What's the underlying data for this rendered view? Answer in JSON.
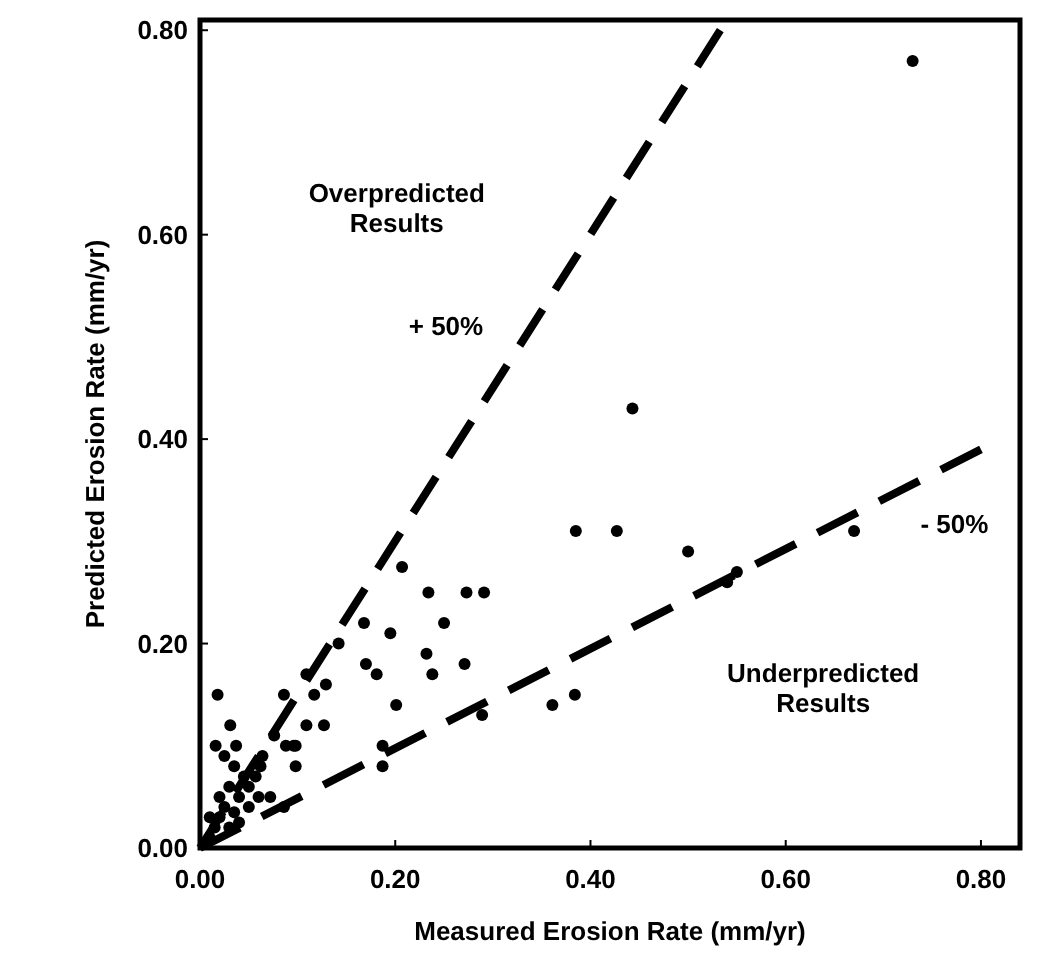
{
  "chart_data": {
    "type": "scatter",
    "xlabel": "Measured Erosion Rate (mm/yr)",
    "ylabel": "Predicted Erosion Rate (mm/yr)",
    "xlim": [
      0,
      0.84
    ],
    "ylim": [
      0,
      0.81
    ],
    "xticks": [
      {
        "value": 0,
        "label": "0.00"
      },
      {
        "value": 0.2,
        "label": "0.20"
      },
      {
        "value": 0.4,
        "label": "0.40"
      },
      {
        "value": 0.6,
        "label": "0.60"
      },
      {
        "value": 0.8,
        "label": "0.80"
      }
    ],
    "yticks": [
      {
        "value": 0,
        "label": "0.00"
      },
      {
        "value": 0.2,
        "label": "0.20"
      },
      {
        "value": 0.4,
        "label": "0.40"
      },
      {
        "value": 0.6,
        "label": "0.60"
      },
      {
        "value": 0.8,
        "label": "0.80"
      }
    ],
    "grid": false,
    "marker": "circle",
    "series": [
      {
        "color": "#000000",
        "x": [
          0.73,
          0.67,
          0.5,
          0.55,
          0.54,
          0.443,
          0.385,
          0.427,
          0.207,
          0.234,
          0.273,
          0.291,
          0.25,
          0.195,
          0.168,
          0.17,
          0.181,
          0.232,
          0.238,
          0.271,
          0.201,
          0.289,
          0.384,
          0.361,
          0.142,
          0.109,
          0.117,
          0.129,
          0.018,
          0.086,
          0.109,
          0.127,
          0.076,
          0.031,
          0.096,
          0.088,
          0.098,
          0.064,
          0.016,
          0.025,
          0.037,
          0.035,
          0.062,
          0.187,
          0.187,
          0.098,
          0.072,
          0.086,
          0.057,
          0.01,
          0.02,
          0.03,
          0.04,
          0.02,
          0.05,
          0.03,
          0.045,
          0.01,
          0.015,
          0.06,
          0.05,
          0.035,
          0.025,
          0.04
        ],
        "values": [
          0.77,
          0.31,
          0.29,
          0.27,
          0.26,
          0.43,
          0.31,
          0.31,
          0.275,
          0.25,
          0.25,
          0.25,
          0.22,
          0.21,
          0.22,
          0.18,
          0.17,
          0.19,
          0.17,
          0.18,
          0.14,
          0.13,
          0.15,
          0.14,
          0.2,
          0.17,
          0.15,
          0.16,
          0.15,
          0.15,
          0.12,
          0.12,
          0.11,
          0.12,
          0.1,
          0.1,
          0.1,
          0.09,
          0.1,
          0.09,
          0.1,
          0.08,
          0.08,
          0.1,
          0.08,
          0.08,
          0.05,
          0.04,
          0.07,
          0.01,
          0.03,
          0.02,
          0.05,
          0.05,
          0.04,
          0.06,
          0.07,
          0.03,
          0.02,
          0.05,
          0.06,
          0.035,
          0.04,
          0.025
        ]
      },
      {
        "type": "line",
        "color": "#000000",
        "line_style": "dashed",
        "marker": "none",
        "x": [
          0,
          0.533
        ],
        "values": [
          0,
          0.8
        ]
      },
      {
        "type": "line",
        "color": "#000000",
        "line_style": "dashed",
        "marker": "none",
        "x": [
          0,
          0.8
        ],
        "values": [
          0,
          0.39
        ]
      }
    ],
    "annotations": [
      "Overpredicted Results",
      "Underpredicted Results",
      "+ 50%",
      "- 50%"
    ]
  }
}
